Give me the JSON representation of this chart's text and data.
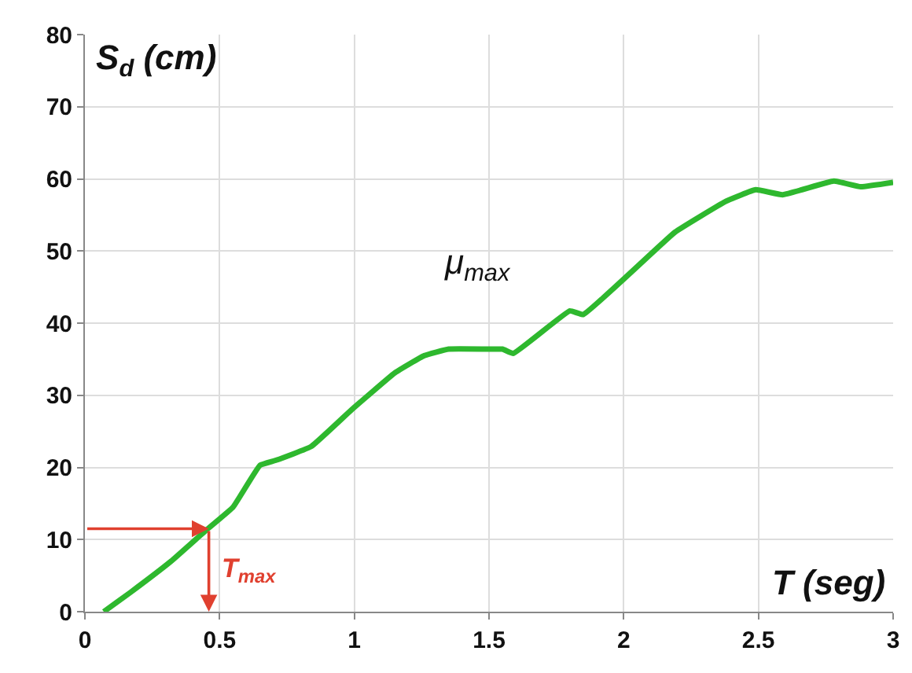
{
  "chart_data": {
    "type": "line",
    "xlabel": "T (seg)",
    "ylabel": "S$_{d}$ (cm)",
    "x": [
      0.07,
      0.17,
      0.32,
      0.45,
      0.55,
      0.65,
      0.71,
      0.84,
      0.99,
      1.15,
      1.26,
      1.35,
      1.49,
      1.55,
      1.59,
      1.8,
      1.85,
      2.19,
      2.38,
      2.49,
      2.59,
      2.78,
      2.88,
      3.0
    ],
    "series": [
      {
        "color": "#2eb82e",
        "values": [
          0,
          2.7,
          7.0,
          11.3,
          14.5,
          20.3,
          21,
          22.9,
          28,
          33.1,
          35.5,
          36.4,
          36.4,
          36.4,
          35.8,
          41.7,
          41.2,
          52.6,
          56.9,
          58.5,
          57.8,
          59.7,
          58.9,
          59.5
        ]
      }
    ],
    "annotations": [
      "μ$_{max}$",
      {
        "text": "T$_{max}$",
        "x": 0.46,
        "y": 11.5
      }
    ],
    "xlim": [
      0,
      3
    ],
    "xticks": [
      0,
      0.5,
      1,
      1.5,
      2,
      2.5,
      3
    ],
    "ylim": [
      0,
      80
    ],
    "yticks": [
      0,
      10,
      20,
      30,
      40,
      50,
      60,
      70,
      80
    ],
    "grid": true,
    "legend": false,
    "marker": "none",
    "line_style": "solid"
  }
}
